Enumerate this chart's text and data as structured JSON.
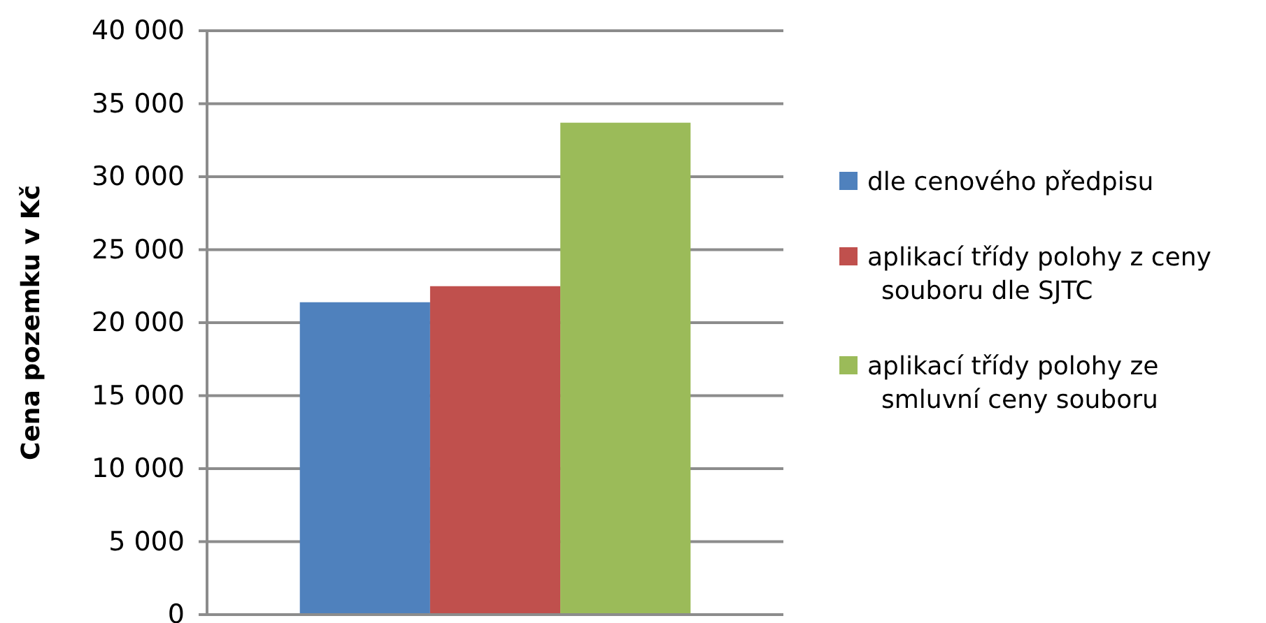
{
  "chart_data": {
    "type": "bar",
    "ylabel": "Cena pozemku v Kč",
    "categories": [
      null
    ],
    "series": [
      {
        "name": "dle cenového předpisu",
        "color": "#4f81bd",
        "values": [
          21400
        ]
      },
      {
        "name": "aplikací třídy polohy z ceny souboru dle SJTC",
        "color": "#c0504d",
        "values": [
          22500
        ]
      },
      {
        "name": "aplikací třídy polohy ze smluvní ceny souboru",
        "color": "#9bbb59",
        "values": [
          33700
        ]
      }
    ],
    "ylim": [
      0,
      40000
    ],
    "yticks": [
      0,
      {
        "value": 5000,
        "label": "5 000"
      },
      {
        "value": 10000,
        "label": "10 000"
      },
      {
        "value": 15000,
        "label": "15 000"
      },
      {
        "value": 20000,
        "label": "20 000"
      },
      {
        "value": 25000,
        "label": "25 000"
      },
      {
        "value": 30000,
        "label": "30 000"
      },
      {
        "value": 35000,
        "label": "35 000"
      },
      {
        "value": 40000,
        "label": "40 000"
      }
    ],
    "grid": "y",
    "legend": "right"
  }
}
